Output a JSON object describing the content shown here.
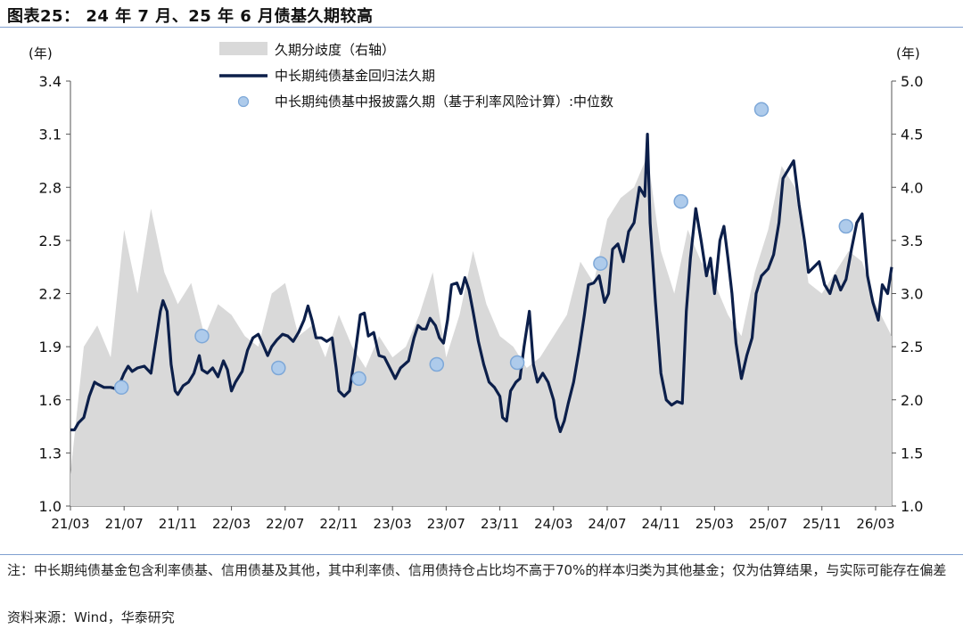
{
  "header": {
    "title": "图表25： 24 年 7 月、25 年 6 月债基久期较高"
  },
  "footer": {
    "note": "注：中长期纯债基金包含利率债基、信用债基及其他，其中利率债、信用债持仓占比均不高于70%的样本归类为其他基金；仅为估算结果，与实际可能存在偏差",
    "source": "资料来源：Wind，华泰研究"
  },
  "colors": {
    "line": "#0c1f4a",
    "area": "#d9d9d9",
    "dot_fill": "#aecbeb",
    "dot_stroke": "#7ea8d8",
    "rule": "#7f9fd0"
  },
  "chart_data": {
    "type": "line",
    "left_axis": {
      "unit": "(年)",
      "ylim": [
        1.0,
        3.4
      ],
      "ticks": [
        "1.0",
        "1.3",
        "1.6",
        "1.9",
        "2.2",
        "2.5",
        "2.8",
        "3.1",
        "3.4"
      ]
    },
    "right_axis": {
      "unit": "(年)",
      "ylim": [
        1.0,
        5.0
      ],
      "ticks": [
        "1.0",
        "1.5",
        "2.0",
        "2.5",
        "3.0",
        "3.5",
        "4.0",
        "4.5",
        "5.0"
      ]
    },
    "x_tick_labels": [
      "21/03",
      "21/07",
      "21/11",
      "22/03",
      "22/07",
      "22/11",
      "23/03",
      "23/07",
      "23/11",
      "24/03",
      "24/07",
      "24/11",
      "25/03",
      "25/07",
      "25/11",
      "26/03"
    ],
    "x_tick_months": [
      0,
      4,
      8,
      12,
      16,
      20,
      24,
      28,
      32,
      36,
      40,
      44,
      48,
      52,
      56,
      60
    ],
    "x_range_months": [
      0,
      61.2
    ],
    "legend": [
      {
        "name": "久期分歧度（右轴）",
        "type": "area"
      },
      {
        "name": "中长期纯债基金回归法久期",
        "type": "line"
      },
      {
        "name": "中长期纯债基中报披露久期（基于利率风险计算）:中位数",
        "type": "scatter"
      }
    ],
    "series": [
      {
        "name": "中长期纯债基金回归法久期",
        "axis": "left",
        "points": [
          [
            0,
            1.43
          ],
          [
            0.3,
            1.43
          ],
          [
            0.6,
            1.47
          ],
          [
            1,
            1.5
          ],
          [
            1.4,
            1.62
          ],
          [
            1.8,
            1.7
          ],
          [
            2,
            1.69
          ],
          [
            2.5,
            1.67
          ],
          [
            3,
            1.67
          ],
          [
            3.5,
            1.66
          ],
          [
            4,
            1.75
          ],
          [
            4.3,
            1.79
          ],
          [
            4.6,
            1.76
          ],
          [
            5,
            1.78
          ],
          [
            5.5,
            1.79
          ],
          [
            6,
            1.75
          ],
          [
            6.4,
            1.95
          ],
          [
            6.7,
            2.1
          ],
          [
            6.9,
            2.16
          ],
          [
            7.2,
            2.1
          ],
          [
            7.5,
            1.8
          ],
          [
            7.8,
            1.65
          ],
          [
            8,
            1.63
          ],
          [
            8.4,
            1.68
          ],
          [
            8.8,
            1.7
          ],
          [
            9.2,
            1.75
          ],
          [
            9.6,
            1.85
          ],
          [
            9.8,
            1.77
          ],
          [
            10.2,
            1.75
          ],
          [
            10.6,
            1.78
          ],
          [
            11,
            1.73
          ],
          [
            11.4,
            1.82
          ],
          [
            11.7,
            1.77
          ],
          [
            12,
            1.65
          ],
          [
            12.3,
            1.7
          ],
          [
            12.8,
            1.76
          ],
          [
            13.2,
            1.88
          ],
          [
            13.6,
            1.95
          ],
          [
            14,
            1.97
          ],
          [
            14.3,
            1.92
          ],
          [
            14.7,
            1.85
          ],
          [
            15,
            1.9
          ],
          [
            15.4,
            1.94
          ],
          [
            15.8,
            1.97
          ],
          [
            16.2,
            1.96
          ],
          [
            16.6,
            1.93
          ],
          [
            17,
            1.98
          ],
          [
            17.4,
            2.05
          ],
          [
            17.7,
            2.13
          ],
          [
            18,
            2.05
          ],
          [
            18.3,
            1.95
          ],
          [
            18.7,
            1.95
          ],
          [
            19.1,
            1.93
          ],
          [
            19.5,
            1.95
          ],
          [
            19.8,
            1.78
          ],
          [
            20,
            1.65
          ],
          [
            20.4,
            1.62
          ],
          [
            20.8,
            1.65
          ],
          [
            21.2,
            1.85
          ],
          [
            21.6,
            2.08
          ],
          [
            21.9,
            2.09
          ],
          [
            22.2,
            1.96
          ],
          [
            22.6,
            1.98
          ],
          [
            23,
            1.85
          ],
          [
            23.4,
            1.84
          ],
          [
            23.8,
            1.78
          ],
          [
            24.2,
            1.72
          ],
          [
            24.6,
            1.78
          ],
          [
            24.9,
            1.8
          ],
          [
            25.2,
            1.82
          ],
          [
            25.6,
            1.95
          ],
          [
            25.9,
            2.02
          ],
          [
            26.2,
            2.0
          ],
          [
            26.5,
            2.0
          ],
          [
            26.8,
            2.06
          ],
          [
            27.2,
            2.02
          ],
          [
            27.5,
            1.95
          ],
          [
            27.8,
            1.92
          ],
          [
            28.1,
            2.05
          ],
          [
            28.4,
            2.25
          ],
          [
            28.8,
            2.26
          ],
          [
            29.1,
            2.2
          ],
          [
            29.4,
            2.29
          ],
          [
            29.7,
            2.22
          ],
          [
            30,
            2.1
          ],
          [
            30.4,
            1.93
          ],
          [
            30.8,
            1.8
          ],
          [
            31.2,
            1.7
          ],
          [
            31.6,
            1.67
          ],
          [
            32,
            1.62
          ],
          [
            32.2,
            1.5
          ],
          [
            32.5,
            1.48
          ],
          [
            32.8,
            1.65
          ],
          [
            33.2,
            1.7
          ],
          [
            33.5,
            1.72
          ],
          [
            33.8,
            1.9
          ],
          [
            34.2,
            2.1
          ],
          [
            34.5,
            1.8
          ],
          [
            34.8,
            1.7
          ],
          [
            35.2,
            1.75
          ],
          [
            35.6,
            1.7
          ],
          [
            36,
            1.6
          ],
          [
            36.2,
            1.5
          ],
          [
            36.5,
            1.42
          ],
          [
            36.8,
            1.48
          ],
          [
            37.1,
            1.58
          ],
          [
            37.5,
            1.7
          ],
          [
            37.9,
            1.88
          ],
          [
            38.3,
            2.08
          ],
          [
            38.6,
            2.25
          ],
          [
            39,
            2.26
          ],
          [
            39.4,
            2.3
          ],
          [
            39.8,
            2.15
          ],
          [
            40.1,
            2.2
          ],
          [
            40.4,
            2.45
          ],
          [
            40.8,
            2.48
          ],
          [
            41.2,
            2.38
          ],
          [
            41.6,
            2.55
          ],
          [
            42,
            2.6
          ],
          [
            42.4,
            2.8
          ],
          [
            42.8,
            2.75
          ],
          [
            43,
            3.1
          ],
          [
            43.2,
            2.6
          ],
          [
            43.6,
            2.15
          ],
          [
            44,
            1.75
          ],
          [
            44.4,
            1.6
          ],
          [
            44.8,
            1.57
          ],
          [
            45.2,
            1.59
          ],
          [
            45.6,
            1.58
          ],
          [
            45.9,
            2.1
          ],
          [
            46.2,
            2.4
          ],
          [
            46.6,
            2.68
          ],
          [
            47,
            2.5
          ],
          [
            47.4,
            2.3
          ],
          [
            47.7,
            2.4
          ],
          [
            48,
            2.2
          ],
          [
            48.4,
            2.5
          ],
          [
            48.7,
            2.58
          ],
          [
            49,
            2.4
          ],
          [
            49.3,
            2.2
          ],
          [
            49.6,
            1.92
          ],
          [
            50,
            1.72
          ],
          [
            50.4,
            1.85
          ],
          [
            50.8,
            1.95
          ],
          [
            51.1,
            2.2
          ],
          [
            51.5,
            2.3
          ],
          [
            52,
            2.34
          ],
          [
            52.4,
            2.42
          ],
          [
            52.8,
            2.6
          ],
          [
            53.1,
            2.85
          ],
          [
            53.5,
            2.9
          ],
          [
            53.9,
            2.95
          ],
          [
            54.3,
            2.7
          ],
          [
            54.7,
            2.5
          ],
          [
            55,
            2.32
          ],
          [
            55.4,
            2.35
          ],
          [
            55.8,
            2.38
          ],
          [
            56.2,
            2.25
          ],
          [
            56.6,
            2.2
          ],
          [
            57,
            2.3
          ],
          [
            57.4,
            2.22
          ],
          [
            57.8,
            2.28
          ],
          [
            58.2,
            2.45
          ],
          [
            58.6,
            2.6
          ],
          [
            59,
            2.65
          ],
          [
            59.4,
            2.3
          ],
          [
            59.8,
            2.15
          ],
          [
            60.2,
            2.05
          ],
          [
            60.5,
            2.25
          ],
          [
            60.9,
            2.2
          ],
          [
            61.2,
            2.35
          ]
        ]
      },
      {
        "name": "中长期纯债基中报披露久期（基于利率风险计算）:中位数",
        "axis": "left",
        "points": [
          [
            3.8,
            1.67
          ],
          [
            9.8,
            1.96
          ],
          [
            15.5,
            1.78
          ],
          [
            21.5,
            1.72
          ],
          [
            27.3,
            1.8
          ],
          [
            33.3,
            1.81
          ],
          [
            39.5,
            2.37
          ],
          [
            45.5,
            2.72
          ],
          [
            51.5,
            3.24
          ],
          [
            57.8,
            2.58
          ]
        ]
      },
      {
        "name": "久期分歧度（右轴）",
        "axis": "right",
        "points": [
          [
            0,
            1.3
          ],
          [
            1,
            2.5
          ],
          [
            2,
            2.7
          ],
          [
            3,
            2.4
          ],
          [
            4,
            3.6
          ],
          [
            5,
            3.0
          ],
          [
            6,
            3.8
          ],
          [
            7,
            3.2
          ],
          [
            8,
            2.9
          ],
          [
            9,
            3.1
          ],
          [
            10,
            2.6
          ],
          [
            11,
            2.9
          ],
          [
            12,
            2.8
          ],
          [
            13,
            2.6
          ],
          [
            14,
            2.5
          ],
          [
            15,
            3.0
          ],
          [
            16,
            3.1
          ],
          [
            17,
            2.6
          ],
          [
            18,
            2.7
          ],
          [
            19,
            2.4
          ],
          [
            20,
            2.8
          ],
          [
            21,
            2.5
          ],
          [
            22,
            2.3
          ],
          [
            23,
            2.6
          ],
          [
            24,
            2.4
          ],
          [
            25,
            2.5
          ],
          [
            26,
            2.8
          ],
          [
            27,
            3.2
          ],
          [
            28,
            2.4
          ],
          [
            29,
            2.8
          ],
          [
            30,
            3.4
          ],
          [
            31,
            2.9
          ],
          [
            32,
            2.6
          ],
          [
            33,
            2.5
          ],
          [
            34,
            2.3
          ],
          [
            35,
            2.4
          ],
          [
            36,
            2.6
          ],
          [
            37,
            2.8
          ],
          [
            38,
            3.3
          ],
          [
            39,
            3.1
          ],
          [
            40,
            3.7
          ],
          [
            41,
            3.9
          ],
          [
            42,
            4.0
          ],
          [
            43,
            4.3
          ],
          [
            44,
            3.4
          ],
          [
            45,
            3.0
          ],
          [
            46,
            3.6
          ],
          [
            47,
            3.3
          ],
          [
            48,
            3.1
          ],
          [
            49,
            2.8
          ],
          [
            50,
            2.6
          ],
          [
            51,
            3.2
          ],
          [
            52,
            3.6
          ],
          [
            53,
            4.2
          ],
          [
            54,
            4.0
          ],
          [
            55,
            3.1
          ],
          [
            56,
            3.0
          ],
          [
            57,
            3.2
          ],
          [
            58,
            3.4
          ],
          [
            59,
            3.3
          ],
          [
            60,
            2.9
          ],
          [
            61.2,
            2.6
          ]
        ]
      }
    ]
  }
}
